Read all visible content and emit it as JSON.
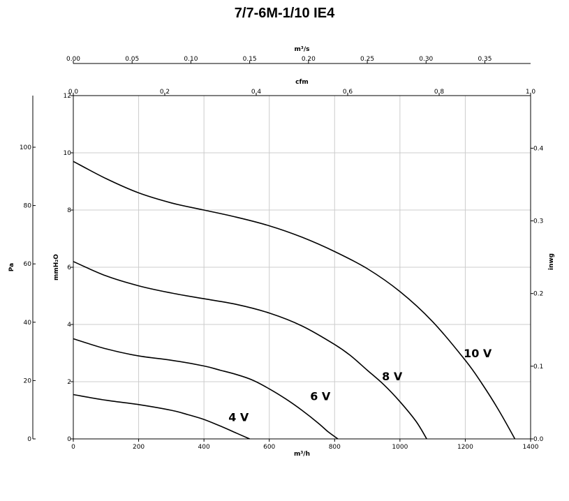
{
  "chart_data": {
    "type": "line",
    "title": "7/7-6M-1/10 IE4",
    "xlabel": "m³/h",
    "ylabel": "mmH₂O",
    "xlim": [
      0,
      1400
    ],
    "ylim": [
      0,
      12
    ],
    "x_ticks": [
      0,
      200,
      400,
      600,
      800,
      1000,
      1200,
      1400
    ],
    "y_ticks": [
      0,
      2,
      4,
      6,
      8,
      10,
      12
    ],
    "grid": true,
    "secondary_axes": {
      "top_outer": {
        "label": "m³/s",
        "ticks": [
          "0.00",
          "0.05",
          "0.10",
          "0.15",
          "0.20",
          "0.25",
          "0.30",
          "0.35"
        ],
        "values": [
          0,
          0.05,
          0.1,
          0.15,
          0.2,
          0.25,
          0.3,
          0.35
        ],
        "range": [
          0,
          0.3889
        ]
      },
      "top_inner": {
        "label": "cfm",
        "ticks": [
          "0.0",
          "0.2",
          "0.4",
          "0.6",
          "0.8",
          "1.0"
        ],
        "values": [
          0,
          0.2,
          0.4,
          0.6,
          0.8,
          1.0
        ],
        "range": [
          0,
          1.0
        ]
      },
      "left_outer": {
        "label": "Pa",
        "ticks": [
          "0",
          "20",
          "40",
          "60",
          "80",
          "100"
        ],
        "values": [
          0,
          20,
          40,
          60,
          80,
          100
        ],
        "range": [
          0,
          117.7
        ]
      },
      "right": {
        "label": "inwg",
        "ticks": [
          "0.0",
          "0.1",
          "0.2",
          "0.3",
          "0.4"
        ],
        "values": [
          0,
          0.1,
          0.2,
          0.3,
          0.4
        ],
        "range": [
          0,
          0.4724
        ]
      }
    },
    "series": [
      {
        "name": "10 V",
        "x": [
          0,
          100,
          200,
          300,
          400,
          500,
          600,
          700,
          800,
          900,
          1000,
          1100,
          1200,
          1250,
          1300,
          1352
        ],
        "y": [
          9.7,
          9.1,
          8.6,
          8.25,
          8.0,
          7.75,
          7.45,
          7.05,
          6.55,
          5.95,
          5.15,
          4.1,
          2.75,
          1.95,
          1.05,
          0
        ]
      },
      {
        "name": "8 V",
        "x": [
          0,
          100,
          200,
          300,
          400,
          500,
          600,
          700,
          800,
          850,
          900,
          950,
          1000,
          1050,
          1082
        ],
        "y": [
          6.2,
          5.7,
          5.35,
          5.1,
          4.9,
          4.7,
          4.4,
          3.95,
          3.3,
          2.9,
          2.4,
          1.9,
          1.3,
          0.6,
          0
        ]
      },
      {
        "name": "6 V",
        "x": [
          0,
          100,
          200,
          300,
          400,
          450,
          500,
          550,
          600,
          650,
          700,
          750,
          780,
          810
        ],
        "y": [
          3.5,
          3.15,
          2.9,
          2.75,
          2.55,
          2.4,
          2.25,
          2.05,
          1.75,
          1.4,
          1.0,
          0.55,
          0.25,
          0
        ]
      },
      {
        "name": "4 V",
        "x": [
          0,
          100,
          200,
          300,
          350,
          400,
          450,
          500,
          540
        ],
        "y": [
          1.55,
          1.35,
          1.2,
          1.0,
          0.85,
          0.68,
          0.45,
          0.2,
          0
        ]
      }
    ],
    "curve_labels": [
      {
        "text": "10 V",
        "x": 1195,
        "y": 3.0
      },
      {
        "text": "8 V",
        "x": 945,
        "y": 2.2
      },
      {
        "text": "6 V",
        "x": 725,
        "y": 1.5
      },
      {
        "text": "4 V",
        "x": 475,
        "y": 0.77
      }
    ]
  }
}
